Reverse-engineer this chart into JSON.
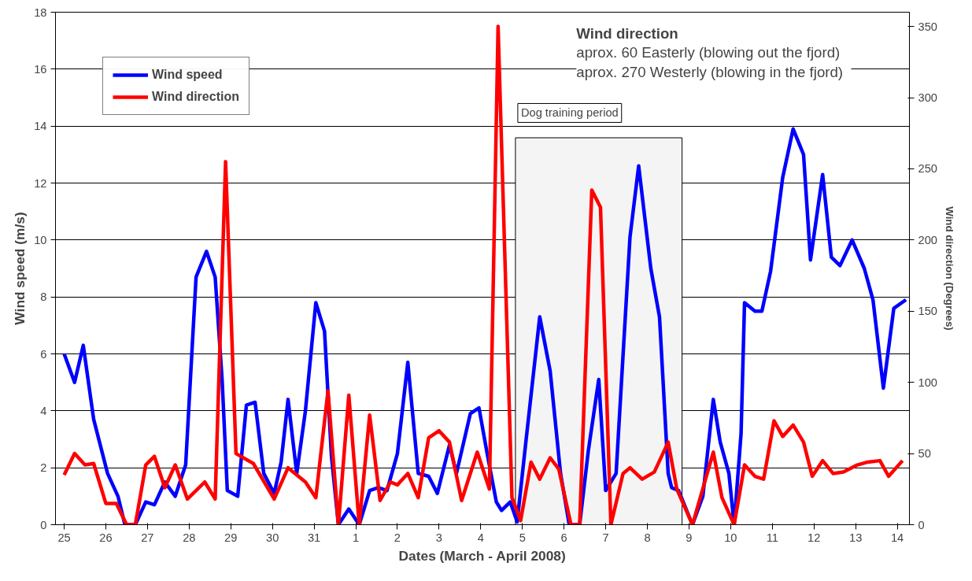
{
  "chart_data": {
    "type": "line",
    "xlabel": "Dates (March - April 2008)",
    "ylabel": "Wind speed (m/s)",
    "y2label": "Wind direction (Degrees)",
    "xlim": [
      "2008-03-24T19:00",
      "2008-04-14T07:00"
    ],
    "xticks": [
      {
        "value": "2008-03-25",
        "label": "25"
      },
      {
        "value": "2008-03-26",
        "label": "26"
      },
      {
        "value": "2008-03-27",
        "label": "27"
      },
      {
        "value": "2008-03-28",
        "label": "28"
      },
      {
        "value": "2008-03-29",
        "label": "29"
      },
      {
        "value": "2008-03-30",
        "label": "30"
      },
      {
        "value": "2008-03-31",
        "label": "31"
      },
      {
        "value": "2008-04-01",
        "label": "1"
      },
      {
        "value": "2008-04-02",
        "label": "2"
      },
      {
        "value": "2008-04-03",
        "label": "3"
      },
      {
        "value": "2008-04-04",
        "label": "4"
      },
      {
        "value": "2008-04-05",
        "label": "5"
      },
      {
        "value": "2008-04-06",
        "label": "6"
      },
      {
        "value": "2008-04-07",
        "label": "7"
      },
      {
        "value": "2008-04-08",
        "label": "8"
      },
      {
        "value": "2008-04-09",
        "label": "9"
      },
      {
        "value": "2008-04-10",
        "label": "10"
      },
      {
        "value": "2008-04-11",
        "label": "11"
      },
      {
        "value": "2008-04-12",
        "label": "12"
      },
      {
        "value": "2008-04-13",
        "label": "13"
      },
      {
        "value": "2008-04-14",
        "label": "14"
      }
    ],
    "ylim": [
      0,
      18
    ],
    "yticks": [
      0,
      2,
      4,
      6,
      8,
      10,
      12,
      14,
      16,
      18
    ],
    "y2lim": [
      0,
      360
    ],
    "y2ticks": [
      0,
      50,
      100,
      150,
      200,
      250,
      300,
      350
    ],
    "grid": "y",
    "legend": "top left",
    "line_style": "solid",
    "marker": "none",
    "series": [
      {
        "name": "Wind speed",
        "color": "#0000ff",
        "x": [
          "2008-03-25T00:00",
          "2008-03-25T06:00",
          "2008-03-25T11:00",
          "2008-03-25T17:00",
          "2008-03-26T01:00",
          "2008-03-26T07:00",
          "2008-03-26T11:00",
          "2008-03-26T17:00",
          "2008-03-26T23:00",
          "2008-03-27T04:00",
          "2008-03-27T10:00",
          "2008-03-27T16:00",
          "2008-03-27T22:00",
          "2008-03-28T04:00",
          "2008-03-28T10:00",
          "2008-03-28T15:00",
          "2008-03-28T19:00",
          "2008-03-28T22:00",
          "2008-03-29T04:00",
          "2008-03-29T09:00",
          "2008-03-29T14:00",
          "2008-03-29T19:00",
          "2008-03-30T01:00",
          "2008-03-30T05:00",
          "2008-03-30T09:00",
          "2008-03-30T14:00",
          "2008-03-30T19:00",
          "2008-03-31T01:00",
          "2008-03-31T06:00",
          "2008-03-31T10:00",
          "2008-03-31T14:00",
          "2008-03-31T20:00",
          "2008-04-01T02:00",
          "2008-04-01T08:00",
          "2008-04-01T13:00",
          "2008-04-01T18:00",
          "2008-04-02T00:00",
          "2008-04-02T06:00",
          "2008-04-02T12:00",
          "2008-04-02T18:00",
          "2008-04-02T23:00",
          "2008-04-03T06:00",
          "2008-04-03T10:00",
          "2008-04-03T18:00",
          "2008-04-03T23:00",
          "2008-04-04T04:00",
          "2008-04-04T09:00",
          "2008-04-04T12:00",
          "2008-04-04T17:00",
          "2008-04-04T21:00",
          "2008-04-05T02:00",
          "2008-04-05T10:00",
          "2008-04-05T16:00",
          "2008-04-05T22:00",
          "2008-04-06T03:00",
          "2008-04-06T09:00",
          "2008-04-06T14:00",
          "2008-04-06T20:00",
          "2008-04-07T00:00",
          "2008-04-07T06:00",
          "2008-04-07T14:00",
          "2008-04-07T19:00",
          "2008-04-08T02:00",
          "2008-04-08T07:00",
          "2008-04-08T12:00",
          "2008-04-08T14:00",
          "2008-04-08T18:00",
          "2008-04-09T02:00",
          "2008-04-09T08:00",
          "2008-04-09T14:00",
          "2008-04-09T18:00",
          "2008-04-09T23:00",
          "2008-04-10T02:00",
          "2008-04-10T06:00",
          "2008-04-10T08:00",
          "2008-04-10T14:00",
          "2008-04-10T18:00",
          "2008-04-10T23:00",
          "2008-04-11T06:00",
          "2008-04-11T12:00",
          "2008-04-11T18:00",
          "2008-04-11T22:00",
          "2008-04-12T05:00",
          "2008-04-12T10:00",
          "2008-04-12T15:00",
          "2008-04-12T22:00",
          "2008-04-13T05:00",
          "2008-04-13T10:00",
          "2008-04-13T16:00",
          "2008-04-13T22:00",
          "2008-04-14T05:00"
        ],
        "values": [
          6.0,
          5.0,
          6.3,
          3.7,
          1.8,
          1.0,
          0,
          0,
          0.8,
          0.7,
          1.5,
          1.0,
          2.1,
          8.7,
          9.6,
          8.7,
          5.1,
          1.2,
          1.0,
          4.2,
          4.3,
          1.8,
          1.1,
          2.2,
          4.4,
          1.8,
          4.0,
          7.8,
          6.8,
          2.4,
          0,
          0.55,
          0,
          1.2,
          1.3,
          1.2,
          2.5,
          5.7,
          1.8,
          1.7,
          1.1,
          2.8,
          1.8,
          3.9,
          4.1,
          2.4,
          0.8,
          0.5,
          0.8,
          0.1,
          2.9,
          7.3,
          5.4,
          1.8,
          0,
          0,
          2.6,
          5.1,
          1.2,
          1.8,
          10.1,
          12.6,
          9.0,
          7.3,
          1.8,
          1.3,
          1.2,
          0,
          1.0,
          4.4,
          2.9,
          1.8,
          0,
          3.2,
          7.8,
          7.5,
          7.5,
          8.9,
          12.2,
          13.9,
          13.0,
          9.3,
          12.3,
          9.4,
          9.1,
          10.0,
          9.0,
          7.9,
          4.8,
          7.6,
          7.9
        ]
      },
      {
        "name": "Wind direction",
        "color": "#ff0000",
        "axis": "y2",
        "x": [
          "2008-03-25T00:00",
          "2008-03-25T06:00",
          "2008-03-25T12:00",
          "2008-03-25T17:00",
          "2008-03-26T00:00",
          "2008-03-26T06:00",
          "2008-03-26T12:00",
          "2008-03-26T17:00",
          "2008-03-26T23:00",
          "2008-03-27T04:00",
          "2008-03-27T10:00",
          "2008-03-27T16:00",
          "2008-03-27T23:00",
          "2008-03-28T09:00",
          "2008-03-28T15:00",
          "2008-03-28T21:00",
          "2008-03-29T03:00",
          "2008-03-29T13:00",
          "2008-03-30T01:00",
          "2008-03-30T09:00",
          "2008-03-30T19:00",
          "2008-03-31T01:00",
          "2008-03-31T08:00",
          "2008-03-31T14:00",
          "2008-03-31T20:00",
          "2008-04-01T02:00",
          "2008-04-01T08:00",
          "2008-04-01T14:00",
          "2008-04-01T20:00",
          "2008-04-02T00:00",
          "2008-04-02T06:00",
          "2008-04-02T12:00",
          "2008-04-02T18:00",
          "2008-04-03T00:00",
          "2008-04-03T06:00",
          "2008-04-03T13:00",
          "2008-04-03T22:00",
          "2008-04-04T05:00",
          "2008-04-04T10:00",
          "2008-04-04T18:00",
          "2008-04-04T23:00",
          "2008-04-05T05:00",
          "2008-04-05T10:00",
          "2008-04-05T16:00",
          "2008-04-05T21:00",
          "2008-04-06T04:00",
          "2008-04-06T09:00",
          "2008-04-06T16:00",
          "2008-04-06T21:00",
          "2008-04-07T03:00",
          "2008-04-07T10:00",
          "2008-04-07T14:00",
          "2008-04-07T21:00",
          "2008-04-08T04:00",
          "2008-04-08T12:00",
          "2008-04-08T17:00",
          "2008-04-09T02:00",
          "2008-04-09T14:00",
          "2008-04-09T19:00",
          "2008-04-10T02:00",
          "2008-04-10T08:00",
          "2008-04-10T14:00",
          "2008-04-10T19:00",
          "2008-04-11T01:00",
          "2008-04-11T06:00",
          "2008-04-11T12:00",
          "2008-04-11T18:00",
          "2008-04-11T23:00",
          "2008-04-12T05:00",
          "2008-04-12T11:00",
          "2008-04-12T17:00",
          "2008-04-13T01:00",
          "2008-04-13T07:00",
          "2008-04-13T14:00",
          "2008-04-13T19:00",
          "2008-04-14T03:00"
        ],
        "values": [
          35,
          50,
          42,
          43,
          15,
          15,
          0,
          0,
          42,
          48,
          26,
          42,
          18,
          30,
          18,
          255,
          50,
          43,
          18,
          40,
          30,
          19,
          94,
          0,
          91,
          0,
          77,
          17,
          30,
          28,
          36,
          19,
          61,
          66,
          58,
          17,
          51,
          25,
          350,
          19,
          3,
          44,
          32,
          47,
          39,
          0,
          0,
          235,
          223,
          0,
          36,
          40,
          32,
          37,
          58,
          25,
          0,
          51,
          19,
          0,
          42,
          34,
          32,
          73,
          62,
          70,
          58,
          34,
          45,
          36,
          37,
          42,
          44,
          45,
          34,
          45
        ]
      }
    ],
    "bands": [
      {
        "axis": "x",
        "from": "2008-04-04T20:00",
        "to": "2008-04-08T20:00",
        "label": "Dog training period",
        "color": "#f4f4f4"
      }
    ],
    "annotations": [
      "Wind direction",
      "aprox.    60   Easterly (blowing out the fjord)",
      "aprox. 270   Westerly (blowing in the fjord)"
    ]
  }
}
